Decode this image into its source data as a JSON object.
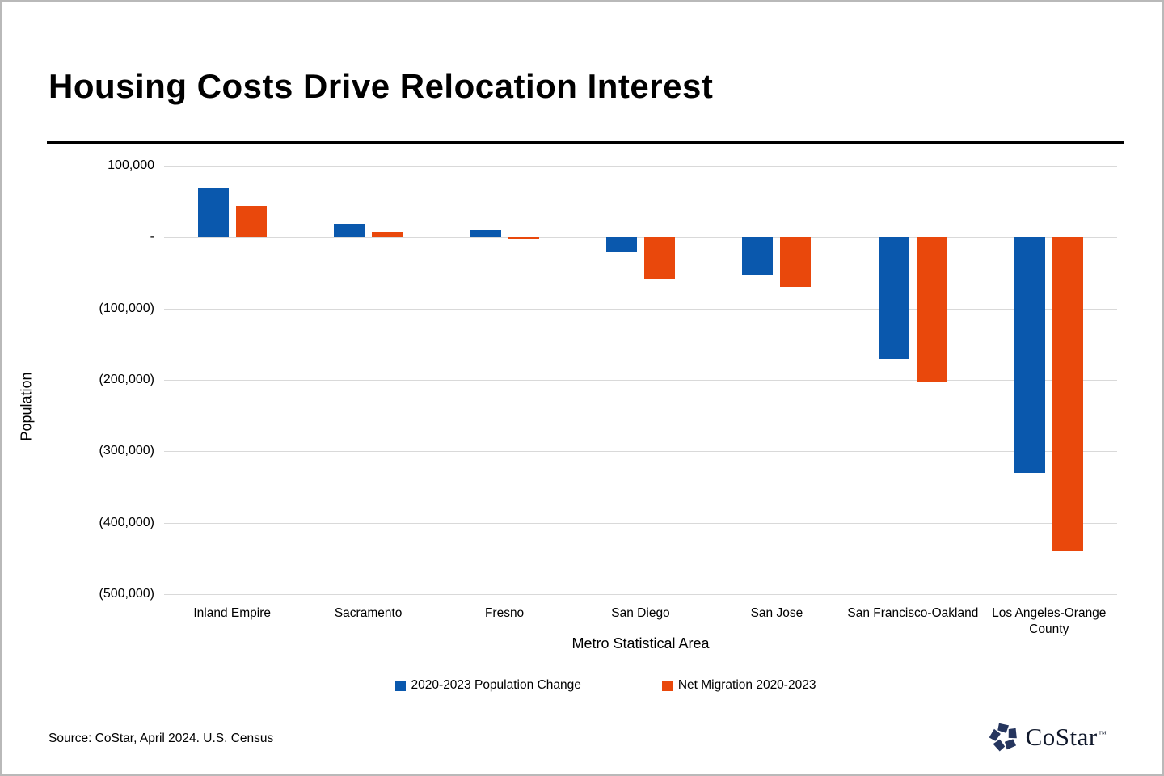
{
  "page": {
    "title": "Housing Costs Drive Relocation Interest",
    "source": "Source: CoStar, April 2024. U.S. Census"
  },
  "colors": {
    "series1": "#0a58ad",
    "series2": "#e9480c",
    "gridline": "#d9d9d9",
    "logo_navy": "#25355e"
  },
  "chart_data": {
    "type": "bar",
    "title": "Housing Costs Drive Relocation Interest",
    "xlabel": "Metro Statistical Area",
    "ylabel": "Population",
    "categories": [
      "Inland Empire",
      "Sacramento",
      "Fresno",
      "San Diego",
      "San Jose",
      "San Francisco-Oakland",
      "Los Angeles-Orange County"
    ],
    "series": [
      {
        "name": "2020-2023 Population Change",
        "color_key": "series1",
        "values": [
          70000,
          19000,
          10000,
          -21000,
          -53000,
          -171000,
          -330000
        ]
      },
      {
        "name": "Net Migration 2020-2023",
        "color_key": "series2",
        "values": [
          43000,
          7000,
          -3000,
          -58000,
          -70000,
          -203000,
          -440000
        ]
      }
    ],
    "ylim": [
      -500000,
      100000
    ],
    "yticks": [
      {
        "value": 100000,
        "label": "100,000"
      },
      {
        "value": 0,
        "label": "-"
      },
      {
        "value": -100000,
        "label": "(100,000)"
      },
      {
        "value": -200000,
        "label": "(200,000)"
      },
      {
        "value": -300000,
        "label": "(300,000)"
      },
      {
        "value": -400000,
        "label": "(400,000)"
      },
      {
        "value": -500000,
        "label": "(500,000)"
      }
    ],
    "grid": true,
    "legend_position": "bottom"
  },
  "logo": {
    "text": "CoStar",
    "tm": "TM"
  }
}
